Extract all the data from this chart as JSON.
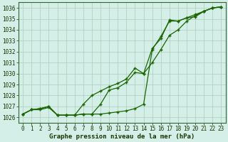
{
  "title": "Graphe pression niveau de la mer (hPa)",
  "bg_color": "#d4eee8",
  "line_color": "#1a6600",
  "grid_color": "#b0ccbb",
  "x_ticks": [
    0,
    1,
    2,
    3,
    4,
    5,
    6,
    7,
    8,
    9,
    10,
    11,
    12,
    13,
    14,
    15,
    16,
    17,
    18,
    19,
    20,
    21,
    22,
    23
  ],
  "y_ticks": [
    1026,
    1027,
    1028,
    1029,
    1030,
    1031,
    1032,
    1033,
    1034,
    1035,
    1036
  ],
  "ylim": [
    1025.5,
    1036.5
  ],
  "xlim": [
    -0.5,
    23.5
  ],
  "series1": [
    1026.3,
    1026.7,
    1026.8,
    1027.0,
    1026.2,
    1026.2,
    1026.2,
    1027.2,
    1028.0,
    1028.4,
    1028.8,
    1029.1,
    1029.5,
    1030.5,
    1030.0,
    1031.0,
    1032.2,
    1033.5,
    1034.0,
    1034.8,
    1035.3,
    1035.7,
    1036.0,
    1036.1
  ],
  "series2": [
    1026.3,
    1026.7,
    1026.7,
    1026.9,
    1026.2,
    1026.2,
    1026.2,
    1026.3,
    1026.3,
    1027.2,
    1028.5,
    1028.7,
    1029.2,
    1030.1,
    1030.0,
    1032.3,
    1033.2,
    1034.9,
    1034.8,
    1035.1,
    1035.2,
    1035.7,
    1036.0,
    1036.1
  ],
  "series3": [
    1026.3,
    1026.7,
    1026.8,
    1027.0,
    1026.2,
    1026.2,
    1026.2,
    1026.3,
    1026.3,
    1026.3,
    1026.4,
    1026.5,
    1026.6,
    1026.8,
    1027.2,
    1032.2,
    1033.4,
    1034.8,
    1034.8,
    1035.1,
    1035.4,
    1035.7,
    1036.0,
    1036.1
  ],
  "title_fontsize": 6.5,
  "tick_fontsize": 5.5,
  "label_color": "#1a3300",
  "spine_color": "#336633"
}
